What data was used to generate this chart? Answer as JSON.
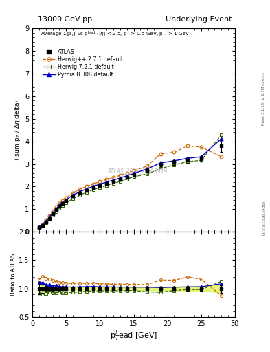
{
  "title_left": "13000 GeV pp",
  "title_right": "Underlying Event",
  "watermark": "ATLAS_2017_I1509919",
  "right_label": "Rivet 3.1.10, ≥ 2.7M events",
  "arxiv_label": "[arXiv:1306.3436]",
  "xlabel": "p$_T^l$ead [GeV]",
  "ylabel_main": "⟨ sum p$_T$ / Δη delta⟩",
  "ylabel_ratio": "Ratio to ATLAS",
  "ylim_main": [
    0,
    9
  ],
  "ylim_ratio": [
    0.5,
    2.0
  ],
  "xlim": [
    0,
    30
  ],
  "yticks_main": [
    0,
    1,
    2,
    3,
    4,
    5,
    6,
    7,
    8,
    9
  ],
  "yticks_ratio": [
    0.5,
    1.0,
    1.5,
    2.0
  ],
  "atlas_x": [
    1.0,
    1.5,
    2.0,
    2.5,
    3.0,
    3.5,
    4.0,
    4.5,
    5.0,
    6.0,
    7.0,
    8.0,
    9.0,
    10.0,
    11.0,
    12.0,
    13.0,
    14.0,
    15.0,
    17.0,
    19.0,
    21.0,
    23.0,
    25.0,
    28.0
  ],
  "atlas_y": [
    0.19,
    0.28,
    0.44,
    0.6,
    0.8,
    0.97,
    1.13,
    1.26,
    1.38,
    1.58,
    1.72,
    1.84,
    1.94,
    2.05,
    2.14,
    2.23,
    2.32,
    2.42,
    2.52,
    2.72,
    3.0,
    3.07,
    3.16,
    3.22,
    3.8
  ],
  "atlas_yerr": [
    0.02,
    0.02,
    0.02,
    0.02,
    0.03,
    0.03,
    0.03,
    0.04,
    0.04,
    0.04,
    0.04,
    0.05,
    0.05,
    0.05,
    0.05,
    0.06,
    0.06,
    0.06,
    0.07,
    0.08,
    0.1,
    0.1,
    0.12,
    0.12,
    0.28
  ],
  "herwig271_x": [
    1.0,
    1.5,
    2.0,
    2.5,
    3.0,
    3.5,
    4.0,
    4.5,
    5.0,
    6.0,
    7.0,
    8.0,
    9.0,
    10.0,
    11.0,
    12.0,
    13.0,
    14.0,
    15.0,
    17.0,
    19.0,
    21.0,
    23.0,
    25.0,
    28.0
  ],
  "herwig271_y": [
    0.22,
    0.34,
    0.52,
    0.7,
    0.91,
    1.09,
    1.25,
    1.39,
    1.51,
    1.72,
    1.88,
    2.01,
    2.12,
    2.22,
    2.31,
    2.4,
    2.5,
    2.6,
    2.7,
    2.91,
    3.45,
    3.52,
    3.8,
    3.75,
    3.32
  ],
  "herwig721_x": [
    1.0,
    1.5,
    2.0,
    2.5,
    3.0,
    3.5,
    4.0,
    4.5,
    5.0,
    6.0,
    7.0,
    8.0,
    9.0,
    10.0,
    11.0,
    12.0,
    13.0,
    14.0,
    15.0,
    17.0,
    19.0,
    21.0,
    23.0,
    25.0,
    28.0
  ],
  "herwig721_y": [
    0.18,
    0.25,
    0.4,
    0.56,
    0.74,
    0.9,
    1.05,
    1.16,
    1.28,
    1.47,
    1.62,
    1.75,
    1.86,
    1.96,
    2.05,
    2.14,
    2.23,
    2.33,
    2.43,
    2.56,
    2.8,
    2.96,
    3.1,
    3.16,
    4.28
  ],
  "pythia_x": [
    1.0,
    1.5,
    2.0,
    2.5,
    3.0,
    3.5,
    4.0,
    4.5,
    5.0,
    6.0,
    7.0,
    8.0,
    9.0,
    10.0,
    11.0,
    12.0,
    13.0,
    14.0,
    15.0,
    17.0,
    19.0,
    21.0,
    23.0,
    25.0,
    28.0
  ],
  "pythia_y": [
    0.21,
    0.31,
    0.47,
    0.64,
    0.84,
    1.02,
    1.17,
    1.3,
    1.42,
    1.62,
    1.77,
    1.9,
    2.01,
    2.11,
    2.2,
    2.29,
    2.38,
    2.48,
    2.58,
    2.78,
    3.05,
    3.14,
    3.25,
    3.32,
    4.12
  ],
  "atlas_color": "#000000",
  "herwig271_color": "#cc6600",
  "herwig721_color": "#336600",
  "pythia_color": "#0000cc",
  "atlas_band_color": "#ccee00",
  "atlas_band_alpha": 0.5,
  "bg_color": "#ffffff"
}
